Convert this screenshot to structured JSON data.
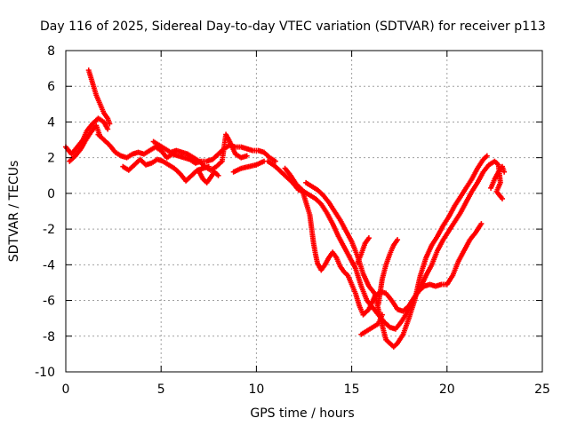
{
  "chart_data": {
    "type": "scatter",
    "title": "Day 116 of 2025, Sidereal Day-to-day VTEC variation (SDTVAR) for receiver p113",
    "xlabel": "GPS time / hours",
    "ylabel": "SDTVAR / TECUs",
    "xlim": [
      0,
      25
    ],
    "ylim": [
      -10,
      8
    ],
    "xticks": [
      "0",
      "5",
      "10",
      "15",
      "20",
      "25"
    ],
    "yticks": [
      "-10",
      "-8",
      "-6",
      "-4",
      "-2",
      "0",
      "2",
      "4",
      "6",
      "8"
    ],
    "grid": true,
    "marker": "plus",
    "color": "#ff0000",
    "tracks": [
      [
        [
          0.0,
          2.6
        ],
        [
          0.3,
          2.2
        ],
        [
          0.6,
          2.6
        ],
        [
          0.9,
          3.0
        ],
        [
          1.1,
          3.5
        ],
        [
          1.4,
          3.9
        ],
        [
          1.7,
          4.2
        ],
        [
          2.0,
          4.0
        ],
        [
          2.2,
          3.6
        ]
      ],
      [
        [
          0.2,
          1.8
        ],
        [
          0.5,
          2.1
        ],
        [
          0.8,
          2.5
        ],
        [
          1.0,
          2.9
        ],
        [
          1.3,
          3.4
        ],
        [
          1.6,
          3.8
        ],
        [
          1.8,
          3.2
        ]
      ],
      [
        [
          1.2,
          6.9
        ],
        [
          1.4,
          6.2
        ],
        [
          1.6,
          5.5
        ],
        [
          1.8,
          5.0
        ],
        [
          2.0,
          4.5
        ],
        [
          2.2,
          4.2
        ],
        [
          2.3,
          3.9
        ]
      ],
      [
        [
          1.7,
          3.3
        ],
        [
          2.0,
          3.0
        ],
        [
          2.3,
          2.7
        ],
        [
          2.6,
          2.3
        ],
        [
          2.9,
          2.1
        ],
        [
          3.2,
          2.0
        ],
        [
          3.5,
          2.2
        ],
        [
          3.8,
          2.3
        ],
        [
          4.1,
          2.2
        ],
        [
          4.4,
          2.4
        ],
        [
          4.7,
          2.6
        ],
        [
          5.0,
          2.4
        ],
        [
          5.3,
          2.0
        ],
        [
          5.6,
          2.2
        ],
        [
          5.9,
          2.1
        ],
        [
          6.2,
          2.0
        ],
        [
          6.5,
          1.9
        ],
        [
          6.8,
          1.7
        ],
        [
          7.1,
          1.8
        ],
        [
          7.4,
          1.8
        ],
        [
          7.7,
          1.9
        ],
        [
          8.0,
          2.2
        ],
        [
          8.3,
          2.5
        ],
        [
          8.6,
          2.7
        ],
        [
          8.9,
          2.6
        ],
        [
          9.2,
          2.6
        ],
        [
          9.5,
          2.5
        ],
        [
          9.8,
          2.4
        ],
        [
          10.1,
          2.4
        ],
        [
          10.4,
          2.3
        ],
        [
          10.7,
          2.0
        ],
        [
          11.0,
          1.8
        ]
      ],
      [
        [
          3.0,
          1.5
        ],
        [
          3.3,
          1.3
        ],
        [
          3.6,
          1.6
        ],
        [
          3.9,
          1.9
        ],
        [
          4.2,
          1.6
        ],
        [
          4.5,
          1.7
        ],
        [
          4.8,
          1.9
        ],
        [
          5.1,
          1.8
        ],
        [
          5.4,
          1.6
        ],
        [
          5.7,
          1.4
        ],
        [
          6.0,
          1.1
        ],
        [
          6.3,
          0.7
        ],
        [
          6.6,
          1.0
        ],
        [
          6.9,
          1.3
        ],
        [
          7.2,
          1.4
        ],
        [
          7.5,
          1.5
        ]
      ],
      [
        [
          4.6,
          2.9
        ],
        [
          4.9,
          2.7
        ],
        [
          5.2,
          2.5
        ],
        [
          5.5,
          2.3
        ],
        [
          5.8,
          2.4
        ],
        [
          6.1,
          2.3
        ],
        [
          6.4,
          2.2
        ],
        [
          6.7,
          2.0
        ],
        [
          7.0,
          1.8
        ],
        [
          7.3,
          1.5
        ],
        [
          7.6,
          1.3
        ],
        [
          7.9,
          1.5
        ],
        [
          8.2,
          1.8
        ],
        [
          8.4,
          3.3
        ],
        [
          8.6,
          2.9
        ],
        [
          8.9,
          2.2
        ],
        [
          9.2,
          2.0
        ],
        [
          9.5,
          2.1
        ]
      ],
      [
        [
          7.0,
          1.2
        ],
        [
          7.2,
          0.8
        ],
        [
          7.4,
          0.6
        ],
        [
          7.6,
          0.9
        ],
        [
          7.8,
          1.2
        ],
        [
          8.0,
          1.0
        ]
      ],
      [
        [
          8.8,
          1.2
        ],
        [
          9.2,
          1.4
        ],
        [
          9.6,
          1.5
        ],
        [
          10.0,
          1.6
        ],
        [
          10.4,
          1.8
        ]
      ],
      [
        [
          10.6,
          1.8
        ],
        [
          11.0,
          1.5
        ],
        [
          11.3,
          1.2
        ],
        [
          11.6,
          0.9
        ],
        [
          11.9,
          0.6
        ],
        [
          12.2,
          0.2
        ],
        [
          12.5,
          0.1
        ],
        [
          12.8,
          -0.1
        ],
        [
          13.1,
          -0.3
        ],
        [
          13.4,
          -0.6
        ],
        [
          13.7,
          -1.1
        ],
        [
          14.0,
          -1.7
        ],
        [
          14.3,
          -2.4
        ],
        [
          14.6,
          -3.0
        ],
        [
          14.9,
          -3.6
        ],
        [
          15.2,
          -4.2
        ],
        [
          15.5,
          -5.2
        ],
        [
          15.8,
          -6.0
        ],
        [
          16.1,
          -6.4
        ],
        [
          16.4,
          -6.8
        ],
        [
          16.7,
          -7.2
        ],
        [
          17.0,
          -7.5
        ],
        [
          17.3,
          -7.6
        ],
        [
          17.6,
          -7.2
        ],
        [
          17.9,
          -6.7
        ],
        [
          18.2,
          -6.0
        ],
        [
          18.5,
          -5.5
        ],
        [
          18.8,
          -5.2
        ],
        [
          19.1,
          -5.1
        ],
        [
          19.4,
          -5.2
        ],
        [
          19.7,
          -5.1
        ],
        [
          20.0,
          -5.1
        ],
        [
          20.3,
          -4.6
        ],
        [
          20.6,
          -3.8
        ],
        [
          20.9,
          -3.2
        ],
        [
          21.2,
          -2.6
        ],
        [
          21.5,
          -2.2
        ],
        [
          21.8,
          -1.7
        ]
      ],
      [
        [
          11.5,
          1.4
        ],
        [
          11.8,
          1.0
        ],
        [
          12.1,
          0.5
        ],
        [
          12.4,
          0.2
        ],
        [
          12.6,
          -0.5
        ],
        [
          12.8,
          -1.2
        ],
        [
          12.9,
          -2.0
        ],
        [
          13.0,
          -2.8
        ],
        [
          13.1,
          -3.4
        ],
        [
          13.2,
          -3.9
        ],
        [
          13.4,
          -4.3
        ],
        [
          13.6,
          -4.0
        ],
        [
          13.8,
          -3.6
        ],
        [
          14.0,
          -3.3
        ],
        [
          14.2,
          -3.6
        ],
        [
          14.4,
          -4.1
        ],
        [
          14.6,
          -4.4
        ],
        [
          14.8,
          -4.6
        ],
        [
          15.0,
          -5.1
        ],
        [
          15.2,
          -5.6
        ],
        [
          15.4,
          -6.3
        ],
        [
          15.6,
          -6.8
        ],
        [
          15.9,
          -6.5
        ],
        [
          16.2,
          -5.8
        ],
        [
          16.5,
          -5.5
        ],
        [
          16.8,
          -5.6
        ],
        [
          17.1,
          -6.0
        ],
        [
          17.4,
          -6.5
        ],
        [
          17.7,
          -6.6
        ],
        [
          18.0,
          -6.3
        ],
        [
          18.3,
          -5.8
        ],
        [
          18.6,
          -5.3
        ],
        [
          18.9,
          -4.6
        ],
        [
          19.2,
          -4.0
        ],
        [
          19.5,
          -3.2
        ],
        [
          19.8,
          -2.6
        ],
        [
          20.1,
          -2.1
        ],
        [
          20.4,
          -1.6
        ],
        [
          20.7,
          -1.1
        ],
        [
          21.0,
          -0.5
        ],
        [
          21.3,
          0.1
        ],
        [
          21.6,
          0.6
        ],
        [
          21.9,
          1.2
        ],
        [
          22.2,
          1.6
        ],
        [
          22.5,
          1.8
        ],
        [
          22.7,
          1.6
        ],
        [
          22.8,
          0.6
        ],
        [
          22.6,
          0.1
        ],
        [
          22.9,
          -0.3
        ]
      ],
      [
        [
          12.6,
          0.6
        ],
        [
          12.9,
          0.4
        ],
        [
          13.2,
          0.2
        ],
        [
          13.5,
          -0.1
        ],
        [
          13.8,
          -0.5
        ],
        [
          14.1,
          -1.0
        ],
        [
          14.4,
          -1.5
        ],
        [
          14.7,
          -2.1
        ],
        [
          15.0,
          -2.7
        ],
        [
          15.3,
          -3.5
        ],
        [
          15.6,
          -4.5
        ],
        [
          15.9,
          -5.2
        ],
        [
          16.2,
          -5.6
        ],
        [
          16.4,
          -6.5
        ],
        [
          16.6,
          -7.4
        ],
        [
          16.8,
          -8.2
        ],
        [
          17.0,
          -8.4
        ],
        [
          17.2,
          -8.6
        ],
        [
          17.4,
          -8.4
        ],
        [
          17.7,
          -7.9
        ],
        [
          18.0,
          -7.0
        ],
        [
          18.3,
          -6.0
        ],
        [
          18.6,
          -4.6
        ],
        [
          18.9,
          -3.6
        ],
        [
          19.2,
          -2.9
        ],
        [
          19.5,
          -2.4
        ],
        [
          19.8,
          -1.8
        ],
        [
          20.1,
          -1.3
        ],
        [
          20.4,
          -0.7
        ],
        [
          20.7,
          -0.2
        ],
        [
          21.0,
          0.3
        ],
        [
          21.3,
          0.8
        ],
        [
          21.6,
          1.4
        ],
        [
          21.9,
          1.9
        ],
        [
          22.1,
          2.1
        ]
      ],
      [
        [
          15.5,
          -7.9
        ],
        [
          15.8,
          -7.7
        ],
        [
          16.1,
          -7.5
        ],
        [
          16.4,
          -7.3
        ],
        [
          16.6,
          -6.8
        ]
      ],
      [
        [
          16.4,
          -6.2
        ],
        [
          16.5,
          -5.5
        ],
        [
          16.6,
          -4.8
        ],
        [
          16.8,
          -4.0
        ],
        [
          17.0,
          -3.4
        ],
        [
          17.2,
          -2.9
        ],
        [
          17.4,
          -2.6
        ]
      ],
      [
        [
          15.3,
          -3.9
        ],
        [
          15.5,
          -3.4
        ],
        [
          15.7,
          -2.8
        ],
        [
          15.9,
          -2.5
        ]
      ],
      [
        [
          22.3,
          0.3
        ],
        [
          22.5,
          0.8
        ],
        [
          22.7,
          1.2
        ],
        [
          22.9,
          1.5
        ],
        [
          23.0,
          1.2
        ]
      ]
    ]
  }
}
